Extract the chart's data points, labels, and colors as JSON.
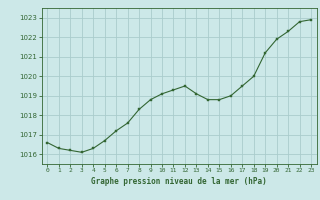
{
  "x": [
    0,
    1,
    2,
    3,
    4,
    5,
    6,
    7,
    8,
    9,
    10,
    11,
    12,
    13,
    14,
    15,
    16,
    17,
    18,
    19,
    20,
    21,
    22,
    23
  ],
  "y": [
    1016.6,
    1016.3,
    1016.2,
    1016.1,
    1016.3,
    1016.7,
    1017.2,
    1017.6,
    1018.3,
    1018.8,
    1019.1,
    1019.3,
    1019.5,
    1019.1,
    1018.8,
    1018.8,
    1019.0,
    1019.5,
    1020.0,
    1021.2,
    1021.9,
    1022.3,
    1022.8,
    1022.9
  ],
  "line_color": "#336633",
  "marker_color": "#336633",
  "bg_color": "#cce8e8",
  "grid_color": "#aacccc",
  "xlabel": "Graphe pression niveau de la mer (hPa)",
  "xlabel_color": "#336633",
  "tick_color": "#336633",
  "ylim": [
    1015.5,
    1023.5
  ],
  "xlim": [
    -0.5,
    23.5
  ],
  "yticks": [
    1016,
    1017,
    1018,
    1019,
    1020,
    1021,
    1022,
    1023
  ],
  "xticks": [
    0,
    1,
    2,
    3,
    4,
    5,
    6,
    7,
    8,
    9,
    10,
    11,
    12,
    13,
    14,
    15,
    16,
    17,
    18,
    19,
    20,
    21,
    22,
    23
  ]
}
